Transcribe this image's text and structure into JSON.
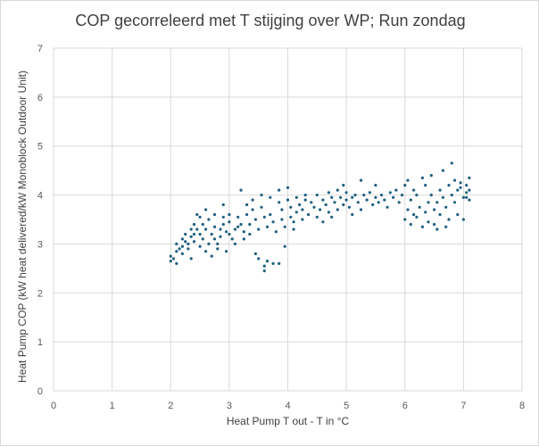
{
  "chart_data": {
    "type": "scatter",
    "title": "COP gecorreleerd met T stijging over WP; Run zondag",
    "xlabel": "Heat Pump T out - T in °C",
    "ylabel": "Heat Pump COP (kW heat delivered/kW Monoblock Outdoor Unit)",
    "xlim": [
      0,
      8
    ],
    "ylim": [
      0,
      7
    ],
    "x_ticks": [
      "0",
      "1",
      "2",
      "3",
      "4",
      "5",
      "6",
      "7",
      "8"
    ],
    "y_ticks": [
      "0",
      "1",
      "2",
      "3",
      "4",
      "5",
      "6",
      "7"
    ],
    "grid": true,
    "legend": "none",
    "marker_color": "#1f5f7f",
    "series": [
      {
        "points": [
          [
            2.0,
            2.75
          ],
          [
            2.0,
            2.65
          ],
          [
            2.05,
            2.7
          ],
          [
            2.1,
            2.85
          ],
          [
            2.1,
            3.0
          ],
          [
            2.1,
            2.6
          ],
          [
            2.15,
            2.9
          ],
          [
            2.2,
            3.1
          ],
          [
            2.2,
            2.95
          ],
          [
            2.2,
            2.8
          ],
          [
            2.25,
            3.2
          ],
          [
            2.25,
            3.05
          ],
          [
            2.3,
            3.0
          ],
          [
            2.3,
            2.9
          ],
          [
            2.35,
            3.3
          ],
          [
            2.35,
            3.15
          ],
          [
            2.35,
            2.7
          ],
          [
            2.4,
            3.4
          ],
          [
            2.4,
            3.2
          ],
          [
            2.4,
            3.05
          ],
          [
            2.45,
            3.6
          ],
          [
            2.45,
            3.3
          ],
          [
            2.5,
            3.55
          ],
          [
            2.5,
            3.2
          ],
          [
            2.5,
            2.95
          ],
          [
            2.55,
            3.4
          ],
          [
            2.55,
            3.1
          ],
          [
            2.6,
            3.7
          ],
          [
            2.6,
            3.3
          ],
          [
            2.6,
            2.85
          ],
          [
            2.65,
            3.5
          ],
          [
            2.65,
            3.0
          ],
          [
            2.7,
            3.2
          ],
          [
            2.7,
            2.75
          ],
          [
            2.75,
            3.6
          ],
          [
            2.75,
            3.35
          ],
          [
            2.75,
            3.1
          ],
          [
            2.8,
            3.0
          ],
          [
            2.8,
            2.9
          ],
          [
            2.85,
            3.3
          ],
          [
            2.85,
            3.15
          ],
          [
            2.9,
            3.8
          ],
          [
            2.9,
            3.55
          ],
          [
            2.9,
            3.4
          ],
          [
            2.95,
            3.25
          ],
          [
            2.95,
            2.85
          ],
          [
            3.0,
            3.6
          ],
          [
            3.0,
            3.45
          ],
          [
            3.0,
            3.2
          ],
          [
            3.05,
            3.1
          ],
          [
            3.1,
            3.3
          ],
          [
            3.1,
            3.0
          ],
          [
            3.15,
            3.55
          ],
          [
            3.15,
            3.35
          ],
          [
            3.2,
            4.1
          ],
          [
            3.2,
            3.4
          ],
          [
            3.25,
            3.25
          ],
          [
            3.25,
            3.1
          ],
          [
            3.3,
            3.8
          ],
          [
            3.3,
            3.6
          ],
          [
            3.35,
            3.4
          ],
          [
            3.35,
            3.2
          ],
          [
            3.4,
            3.9
          ],
          [
            3.4,
            3.7
          ],
          [
            3.45,
            3.5
          ],
          [
            3.45,
            2.8
          ],
          [
            3.5,
            3.3
          ],
          [
            3.5,
            2.7
          ],
          [
            3.55,
            4.0
          ],
          [
            3.55,
            3.75
          ],
          [
            3.6,
            3.55
          ],
          [
            3.6,
            2.55
          ],
          [
            3.6,
            2.45
          ],
          [
            3.65,
            3.35
          ],
          [
            3.65,
            2.65
          ],
          [
            3.7,
            3.95
          ],
          [
            3.7,
            3.6
          ],
          [
            3.75,
            3.45
          ],
          [
            3.75,
            2.6
          ],
          [
            3.8,
            3.25
          ],
          [
            3.85,
            4.1
          ],
          [
            3.85,
            3.85
          ],
          [
            3.85,
            2.6
          ],
          [
            3.9,
            3.7
          ],
          [
            3.9,
            3.5
          ],
          [
            3.95,
            3.35
          ],
          [
            3.95,
            2.95
          ],
          [
            4.0,
            4.15
          ],
          [
            4.0,
            3.9
          ],
          [
            4.05,
            3.75
          ],
          [
            4.05,
            3.55
          ],
          [
            4.1,
            3.45
          ],
          [
            4.1,
            3.3
          ],
          [
            4.15,
            3.65
          ],
          [
            4.15,
            3.95
          ],
          [
            4.2,
            3.8
          ],
          [
            4.25,
            3.7
          ],
          [
            4.25,
            3.5
          ],
          [
            4.3,
            3.9
          ],
          [
            4.3,
            4.0
          ],
          [
            4.35,
            3.6
          ],
          [
            4.4,
            3.85
          ],
          [
            4.45,
            3.75
          ],
          [
            4.5,
            4.0
          ],
          [
            4.5,
            3.55
          ],
          [
            4.55,
            3.7
          ],
          [
            4.6,
            3.9
          ],
          [
            4.6,
            3.45
          ],
          [
            4.65,
            3.8
          ],
          [
            4.7,
            4.05
          ],
          [
            4.7,
            3.65
          ],
          [
            4.75,
            3.95
          ],
          [
            4.75,
            3.55
          ],
          [
            4.8,
            3.85
          ],
          [
            4.85,
            4.1
          ],
          [
            4.85,
            3.7
          ],
          [
            4.9,
            3.95
          ],
          [
            4.95,
            4.2
          ],
          [
            4.95,
            3.8
          ],
          [
            5.0,
            3.9
          ],
          [
            5.0,
            4.05
          ],
          [
            5.05,
            3.75
          ],
          [
            5.1,
            3.95
          ],
          [
            5.1,
            3.6
          ],
          [
            5.15,
            4.0
          ],
          [
            5.2,
            3.85
          ],
          [
            5.25,
            4.3
          ],
          [
            5.25,
            3.7
          ],
          [
            5.3,
            4.0
          ],
          [
            5.35,
            3.9
          ],
          [
            5.4,
            4.05
          ],
          [
            5.45,
            3.8
          ],
          [
            5.5,
            3.95
          ],
          [
            5.5,
            4.2
          ],
          [
            5.55,
            3.85
          ],
          [
            5.6,
            4.0
          ],
          [
            5.65,
            3.9
          ],
          [
            5.7,
            3.75
          ],
          [
            5.75,
            4.05
          ],
          [
            5.8,
            3.95
          ],
          [
            5.85,
            4.1
          ],
          [
            5.9,
            3.85
          ],
          [
            5.95,
            4.0
          ],
          [
            6.0,
            4.2
          ],
          [
            6.0,
            3.5
          ],
          [
            6.05,
            3.7
          ],
          [
            6.05,
            4.3
          ],
          [
            6.1,
            3.9
          ],
          [
            6.1,
            3.4
          ],
          [
            6.15,
            4.1
          ],
          [
            6.15,
            3.6
          ],
          [
            6.2,
            4.0
          ],
          [
            6.2,
            3.55
          ],
          [
            6.25,
            3.75
          ],
          [
            6.3,
            4.35
          ],
          [
            6.3,
            3.35
          ],
          [
            6.35,
            4.2
          ],
          [
            6.35,
            3.65
          ],
          [
            6.4,
            3.85
          ],
          [
            6.4,
            3.45
          ],
          [
            6.45,
            4.4
          ],
          [
            6.45,
            4.0
          ],
          [
            6.5,
            3.7
          ],
          [
            6.5,
            3.4
          ],
          [
            6.55,
            3.85
          ],
          [
            6.55,
            3.3
          ],
          [
            6.6,
            4.1
          ],
          [
            6.6,
            3.6
          ],
          [
            6.65,
            4.5
          ],
          [
            6.65,
            3.95
          ],
          [
            6.7,
            3.75
          ],
          [
            6.7,
            3.35
          ],
          [
            6.75,
            4.2
          ],
          [
            6.75,
            3.5
          ],
          [
            6.8,
            4.65
          ],
          [
            6.8,
            4.0
          ],
          [
            6.85,
            3.85
          ],
          [
            6.85,
            4.3
          ],
          [
            6.9,
            4.1
          ],
          [
            6.9,
            3.6
          ],
          [
            6.95,
            4.25
          ],
          [
            7.0,
            3.95
          ],
          [
            7.0,
            3.5
          ],
          [
            7.05,
            4.2
          ],
          [
            7.05,
            4.05
          ],
          [
            7.1,
            4.35
          ],
          [
            7.1,
            3.9
          ],
          [
            7.1,
            4.1
          ],
          [
            7.05,
            3.95
          ],
          [
            6.95,
            4.15
          ]
        ]
      }
    ]
  }
}
